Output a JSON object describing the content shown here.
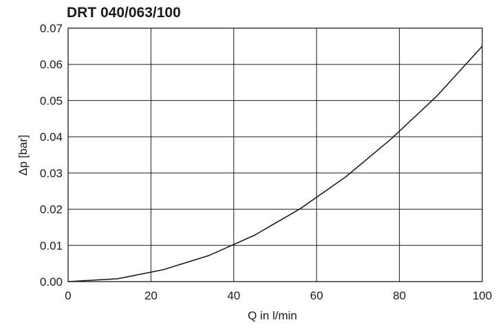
{
  "chart_data": {
    "type": "line",
    "title": "DRT 040/063/100",
    "xlabel": "Q in l/min",
    "ylabel": "Δp [bar]",
    "xlim": [
      0,
      100
    ],
    "ylim": [
      0,
      0.07
    ],
    "x_ticks": [
      "0",
      "20",
      "40",
      "60",
      "80",
      "100"
    ],
    "y_ticks": [
      "0.00",
      "0.01",
      "0.02",
      "0.03",
      "0.04",
      "0.05",
      "0.06",
      "0.07"
    ],
    "grid": true,
    "series": [
      {
        "x": [
          0,
          12,
          23,
          34,
          45,
          56,
          67,
          78,
          89,
          100
        ],
        "values": [
          0,
          0.0008,
          0.0033,
          0.0072,
          0.0128,
          0.0201,
          0.0289,
          0.0394,
          0.0512,
          0.065
        ]
      }
    ],
    "colors": {
      "line": "#1a1a1a",
      "grid": "#1a1a1a",
      "background": "#ffffff"
    }
  }
}
